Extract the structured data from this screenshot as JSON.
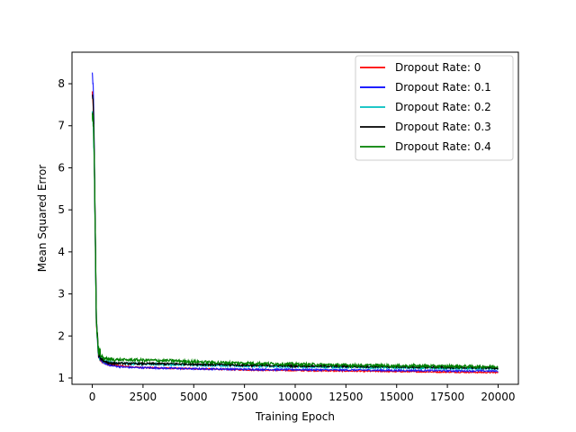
{
  "chart_data": {
    "type": "line",
    "title": "",
    "xlabel": "Training Epoch",
    "ylabel": "Mean Squared Error",
    "xlim": [
      -1000,
      21000
    ],
    "ylim": [
      0.85,
      8.75
    ],
    "xticks": [
      0,
      2500,
      5000,
      7500,
      10000,
      12500,
      15000,
      17500,
      20000
    ],
    "yticks": [
      1,
      2,
      3,
      4,
      5,
      6,
      7,
      8
    ],
    "grid": false,
    "legend_position": "top-right",
    "x": [
      0,
      50,
      100,
      150,
      200,
      300,
      400,
      600,
      800,
      1000,
      1500,
      2000,
      3000,
      4000,
      5000,
      6000,
      7000,
      8000,
      9000,
      10000,
      11000,
      12000,
      13000,
      14000,
      15000,
      16000,
      17000,
      18000,
      19000,
      20000
    ],
    "series": [
      {
        "name": "Dropout Rate: 0",
        "color": "#ff0000",
        "noise": 0.015,
        "values": [
          7.8,
          7.4,
          6.2,
          4.3,
          2.3,
          1.55,
          1.42,
          1.36,
          1.33,
          1.31,
          1.28,
          1.26,
          1.24,
          1.23,
          1.22,
          1.21,
          1.2,
          1.19,
          1.185,
          1.18,
          1.175,
          1.17,
          1.165,
          1.16,
          1.155,
          1.15,
          1.145,
          1.14,
          1.135,
          1.13
        ]
      },
      {
        "name": "Dropout Rate: 0.1",
        "color": "#0000ff",
        "noise": 0.02,
        "values": [
          8.3,
          7.9,
          6.4,
          4.4,
          2.4,
          1.58,
          1.43,
          1.35,
          1.31,
          1.29,
          1.26,
          1.25,
          1.24,
          1.23,
          1.22,
          1.215,
          1.21,
          1.205,
          1.2,
          1.2,
          1.195,
          1.19,
          1.19,
          1.185,
          1.18,
          1.18,
          1.175,
          1.17,
          1.17,
          1.165
        ]
      },
      {
        "name": "Dropout Rate: 0.2",
        "color": "#00bfbf",
        "noise": 0.025,
        "values": [
          7.3,
          7.0,
          6.0,
          4.2,
          2.3,
          1.6,
          1.47,
          1.4,
          1.37,
          1.36,
          1.35,
          1.34,
          1.33,
          1.32,
          1.31,
          1.3,
          1.29,
          1.28,
          1.275,
          1.27,
          1.265,
          1.26,
          1.255,
          1.25,
          1.245,
          1.24,
          1.235,
          1.23,
          1.225,
          1.22
        ]
      },
      {
        "name": "Dropout Rate: 0.3",
        "color": "#000000",
        "noise": 0.025,
        "values": [
          7.8,
          7.5,
          6.3,
          4.4,
          2.4,
          1.62,
          1.46,
          1.39,
          1.36,
          1.35,
          1.345,
          1.34,
          1.34,
          1.335,
          1.33,
          1.32,
          1.31,
          1.3,
          1.295,
          1.29,
          1.285,
          1.28,
          1.275,
          1.27,
          1.265,
          1.26,
          1.255,
          1.25,
          1.245,
          1.24
        ]
      },
      {
        "name": "Dropout Rate: 0.4",
        "color": "#008000",
        "noise": 0.035,
        "values": [
          7.2,
          7.1,
          6.1,
          4.3,
          2.4,
          1.68,
          1.53,
          1.47,
          1.45,
          1.44,
          1.43,
          1.43,
          1.42,
          1.41,
          1.39,
          1.37,
          1.36,
          1.35,
          1.34,
          1.33,
          1.32,
          1.31,
          1.3,
          1.3,
          1.29,
          1.29,
          1.28,
          1.28,
          1.27,
          1.27
        ]
      }
    ]
  }
}
